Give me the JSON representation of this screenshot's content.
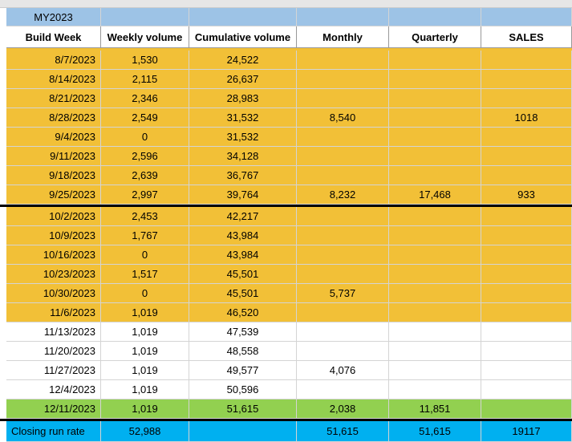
{
  "sheet": {
    "title": "MY2023",
    "header": [
      "Build Week",
      "Weekly volume",
      "Cumulative volume",
      "Monthly",
      "Quarterly",
      "SALES"
    ],
    "rows": [
      [
        "8/7/2023",
        "1,530",
        "24,522",
        null,
        null,
        null
      ],
      [
        "8/14/2023",
        "2,115",
        "26,637",
        null,
        null,
        null
      ],
      [
        "8/21/2023",
        "2,346",
        "28,983",
        null,
        null,
        null
      ],
      [
        "8/28/2023",
        "2,549",
        "31,532",
        "8,540",
        null,
        "1018"
      ],
      [
        "9/4/2023",
        "0",
        "31,532",
        null,
        null,
        null
      ],
      [
        "9/11/2023",
        "2,596",
        "34,128",
        null,
        null,
        null
      ],
      [
        "9/18/2023",
        "2,639",
        "36,767",
        null,
        null,
        null
      ],
      [
        "9/25/2023",
        "2,997",
        "39,764",
        "8,232",
        "17,468",
        "933"
      ],
      [
        "10/2/2023",
        "2,453",
        "42,217",
        null,
        null,
        null
      ],
      [
        "10/9/2023",
        "1,767",
        "43,984",
        null,
        null,
        null
      ],
      [
        "10/16/2023",
        "0",
        "43,984",
        null,
        null,
        null
      ],
      [
        "10/23/2023",
        "1,517",
        "45,501",
        null,
        null,
        null
      ],
      [
        "10/30/2023",
        "0",
        "45,501",
        "5,737",
        null,
        null
      ],
      [
        "11/6/2023",
        "1,019",
        "46,520",
        null,
        null,
        null
      ],
      [
        "11/13/2023",
        "1,019",
        "47,539",
        null,
        null,
        null
      ],
      [
        "11/20/2023",
        "1,019",
        "48,558",
        null,
        null,
        null
      ],
      [
        "11/27/2023",
        "1,019",
        "49,577",
        "4,076",
        null,
        null
      ],
      [
        "12/4/2023",
        "1,019",
        "50,596",
        null,
        null,
        null
      ],
      [
        "12/11/2023",
        "1,019",
        "51,615",
        "2,038",
        "11,851",
        null
      ]
    ],
    "closing": [
      "Closing run rate",
      "52,988",
      null,
      "51,615",
      "51,615",
      "19117"
    ]
  }
}
